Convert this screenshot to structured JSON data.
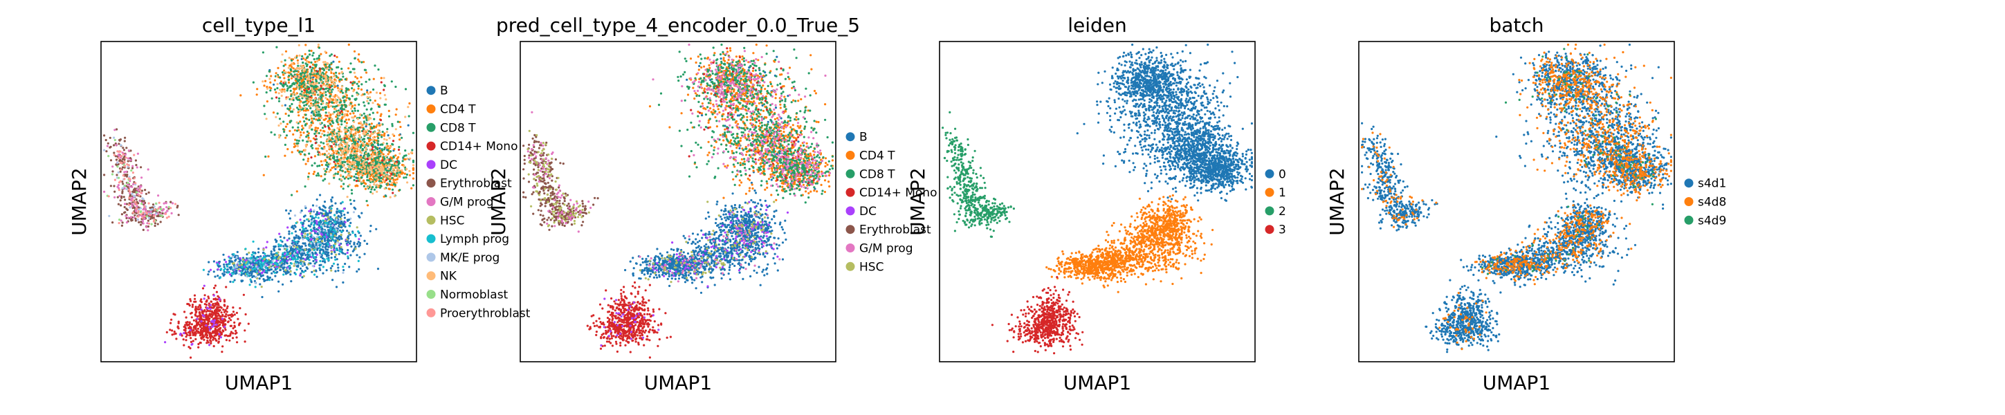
{
  "chart_data": [
    {
      "type": "scatter",
      "title": "cell_type_l1",
      "xlabel": "UMAP1",
      "ylabel": "UMAP2",
      "grid": false,
      "legend_position": "right",
      "series": [
        {
          "name": "B",
          "color": "#1f77b4"
        },
        {
          "name": "CD4 T",
          "color": "#ff7f0e"
        },
        {
          "name": "CD8 T",
          "color": "#279e68"
        },
        {
          "name": "CD14+ Mono",
          "color": "#d62728"
        },
        {
          "name": "DC",
          "color": "#aa40fc"
        },
        {
          "name": "Erythroblast",
          "color": "#8c564b"
        },
        {
          "name": "G/M prog",
          "color": "#e377c2"
        },
        {
          "name": "HSC",
          "color": "#b5bd61"
        },
        {
          "name": "Lymph prog",
          "color": "#17becf"
        },
        {
          "name": "MK/E prog",
          "color": "#aec7e8"
        },
        {
          "name": "NK",
          "color": "#ffbb78"
        },
        {
          "name": "Normoblast",
          "color": "#98df8a"
        },
        {
          "name": "Proerythroblast",
          "color": "#ff9896"
        }
      ]
    },
    {
      "type": "scatter",
      "title": "pred_cell_type_4_encoder_0.0_True_5",
      "xlabel": "UMAP1",
      "ylabel": "UMAP2",
      "grid": false,
      "legend_position": "right",
      "series": [
        {
          "name": "B",
          "color": "#1f77b4"
        },
        {
          "name": "CD4 T",
          "color": "#ff7f0e"
        },
        {
          "name": "CD8 T",
          "color": "#279e68"
        },
        {
          "name": "CD14+ Mono",
          "color": "#d62728"
        },
        {
          "name": "DC",
          "color": "#aa40fc"
        },
        {
          "name": "Erythroblast",
          "color": "#8c564b"
        },
        {
          "name": "G/M prog",
          "color": "#e377c2"
        },
        {
          "name": "HSC",
          "color": "#b5bd61"
        }
      ]
    },
    {
      "type": "scatter",
      "title": "leiden",
      "xlabel": "UMAP1",
      "ylabel": "UMAP2",
      "grid": false,
      "legend_position": "right",
      "series": [
        {
          "name": "0",
          "color": "#1f77b4"
        },
        {
          "name": "1",
          "color": "#ff7f0e"
        },
        {
          "name": "2",
          "color": "#279e68"
        },
        {
          "name": "3",
          "color": "#d62728"
        }
      ]
    },
    {
      "type": "scatter",
      "title": "batch",
      "xlabel": "UMAP1",
      "ylabel": "UMAP2",
      "grid": false,
      "legend_position": "right",
      "series": [
        {
          "name": "s4d1",
          "color": "#1f77b4"
        },
        {
          "name": "s4d8",
          "color": "#ff7f0e"
        },
        {
          "name": "s4d9",
          "color": "#279e68"
        }
      ]
    }
  ]
}
